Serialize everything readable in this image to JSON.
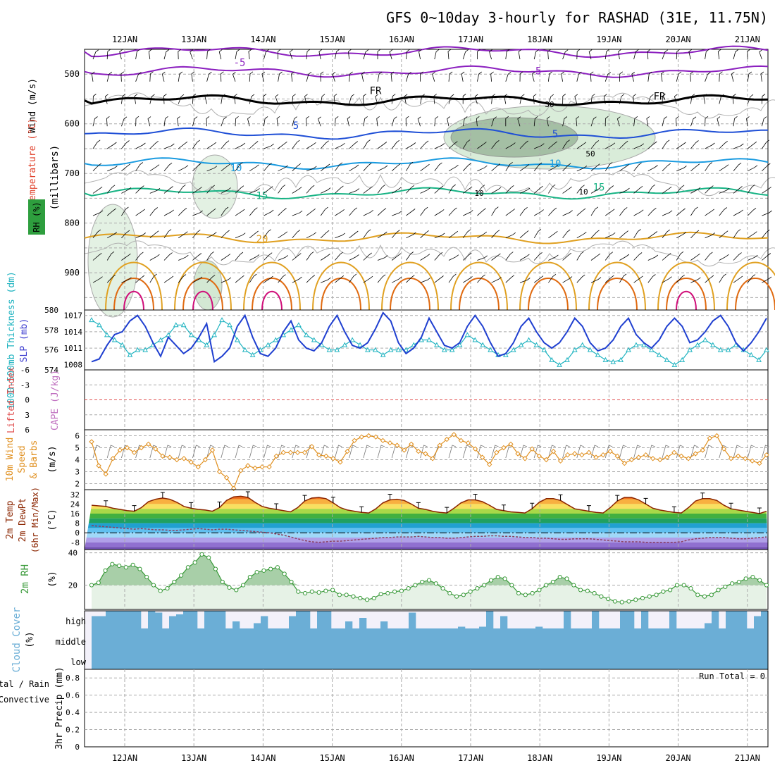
{
  "title": "GFS 0~10day 3-hourly for RASHAD (31E, 11.75N)",
  "dates": [
    "12JAN",
    "13JAN",
    "14JAN",
    "15JAN",
    "16JAN",
    "17JAN",
    "18JAN",
    "19JAN",
    "20JAN",
    "21JAN"
  ],
  "run_total": "Run Total = 0",
  "colors": {
    "rh_fill": "#2e9e3e",
    "cloud": "#6baed6",
    "cloud_bg": "#f3f1fa",
    "precip_total": "#2ca02c",
    "precip_conv": "#d62728"
  },
  "chart_data": [
    {
      "id": "upper-air",
      "type": "contour",
      "ylabel_parts": [
        "Wind (m/s)",
        "Temperature (°C)",
        "RH (%)"
      ],
      "ylabel_center": "(millibars)",
      "yticks": [
        "500",
        "600",
        "700",
        "800",
        "900"
      ],
      "ylim": [
        450,
        975
      ],
      "temp_contours": [
        {
          "label": "-5",
          "level_mb": 495,
          "color": "#8b1fbf"
        },
        {
          "label": "-5",
          "level_mb": 455,
          "color": "#8b1fbf"
        },
        {
          "label": "FR",
          "level_mb": 553,
          "color": "#000000"
        },
        {
          "label": "5",
          "level_mb": 620,
          "color": "#1f4fd6"
        },
        {
          "label": "10",
          "level_mb": 680,
          "color": "#1a9be0"
        },
        {
          "label": "15",
          "level_mb": 740,
          "color": "#17b384"
        },
        {
          "label": "20",
          "level_mb": 830,
          "color": "#e0a020"
        }
      ],
      "rh_labels": [
        "10",
        "30",
        "50"
      ]
    },
    {
      "id": "slp-thickness",
      "type": "line",
      "ylabel_left": "1000-500mb Thickness (dm)",
      "ylabel_right": "SLP (mb)",
      "thickness_ticks": [
        "580",
        "578",
        "576",
        "574"
      ],
      "slp_ticks": [
        "1017",
        "1014",
        "1011",
        "1008"
      ],
      "series": [
        {
          "name": "SLP",
          "color": "#1f3fd0",
          "values": [
            1008.5,
            1009,
            1011.5,
            1013.5,
            1014,
            1016,
            1017,
            1015,
            1012,
            1009.5,
            1013,
            1011.5,
            1010,
            1011,
            1013,
            1015.5,
            1008.5,
            1009.5,
            1011,
            1015,
            1017,
            1013,
            1010,
            1009.5,
            1011,
            1014,
            1016,
            1012.5,
            1011,
            1010.5,
            1012,
            1015,
            1017,
            1014,
            1011.5,
            1011,
            1012,
            1014.5,
            1017.5,
            1016,
            1012,
            1010,
            1011,
            1013,
            1016.5,
            1014,
            1011.5,
            1011,
            1012,
            1015,
            1017,
            1015,
            1012,
            1009.5,
            1010,
            1012,
            1015,
            1016.5,
            1014,
            1012,
            1011,
            1012,
            1014,
            1016.5,
            1015,
            1012,
            1010.5,
            1011,
            1012.5,
            1015,
            1016.5,
            1013.5,
            1012,
            1011,
            1012.5,
            1015,
            1016.5,
            1015,
            1012,
            1012.5,
            1014,
            1016,
            1017,
            1015,
            1012,
            1010.5,
            1012,
            1014,
            1016.5
          ]
        },
        {
          "name": "Thickness",
          "color": "#1fb3c0",
          "values": [
            579,
            578.5,
            577.5,
            577,
            576.5,
            575.5,
            576,
            576,
            576.5,
            577,
            577.5,
            578.5,
            578.5,
            577.5,
            577,
            576.5,
            577.5,
            579,
            578.5,
            577,
            576,
            575.5,
            576,
            576.5,
            577,
            577.5,
            578,
            578.5,
            577.5,
            577,
            576.5,
            576,
            576,
            576.5,
            577,
            576.5,
            576,
            576,
            575.5,
            576,
            576,
            576,
            576.5,
            577,
            577,
            576.5,
            576,
            576,
            576.5,
            577.5,
            577,
            576.5,
            576,
            575.5,
            575.5,
            576,
            576.5,
            577,
            576.5,
            576,
            575,
            574.5,
            575,
            576,
            576.5,
            576,
            575.5,
            575,
            574.8,
            575,
            576,
            576.5,
            576.5,
            576,
            575.5,
            575,
            574.5,
            575,
            576,
            576.5,
            577,
            576.5,
            576,
            576,
            576.5,
            576,
            575.5,
            575,
            576
          ]
        }
      ],
      "thickness_ylim": [
        574,
        580
      ],
      "slp_ylim": [
        1007,
        1018
      ]
    },
    {
      "id": "cape-li",
      "type": "line",
      "ylabel_left": "Lifted Index",
      "ylabel_right": "CAPE (J/kg)",
      "yticks": [
        "-6",
        "-3",
        "0",
        "3",
        "6"
      ],
      "ylim": [
        -6,
        6
      ],
      "series": []
    },
    {
      "id": "wind10m",
      "type": "line",
      "ylabel": "10m Wind Speed & Barbs (m/s)",
      "ylabel_lines": [
        "10m Wind",
        "Speed",
        "& Barbs"
      ],
      "yunit": "(m/s)",
      "yticks": [
        "2",
        "3",
        "4",
        "5",
        "6"
      ],
      "ylim": [
        1.5,
        6.5
      ],
      "series": [
        {
          "name": "Speed",
          "color": "#e09020",
          "values": [
            5.5,
            3.5,
            2.8,
            4.1,
            4.8,
            5,
            4.6,
            5,
            5.3,
            4.9,
            4.3,
            4.2,
            4,
            4.1,
            3.8,
            3.4,
            4,
            4.8,
            3,
            2.5,
            1.6,
            3.1,
            3.5,
            3.3,
            3.4,
            3.4,
            4.3,
            4.6,
            4.6,
            4.6,
            4.6,
            5.1,
            4.4,
            4.3,
            4.1,
            3.8,
            4.7,
            5.6,
            5.9,
            6,
            5.9,
            5.6,
            5.4,
            5.2,
            4.8,
            5.3,
            4.7,
            4.5,
            4.1,
            5.2,
            5.7,
            6.1,
            5.6,
            5.4,
            4.9,
            4.2,
            3.6,
            4.6,
            5,
            5.3,
            4.5,
            4.1,
            4.9,
            4.3,
            4,
            4.7,
            3.9,
            4.4,
            4.5,
            4.4,
            4.6,
            4.2,
            4.4,
            4.7,
            4.3,
            3.7,
            4,
            4.2,
            4.4,
            4.1,
            4,
            4.2,
            4.6,
            4.3,
            4.1,
            4.5,
            4.8,
            5.8,
            6,
            4.9,
            4.1,
            4.3,
            4.1,
            3.9,
            3.7,
            4.4
          ]
        }
      ]
    },
    {
      "id": "temp2m",
      "type": "area",
      "ylabel_lines": [
        "2m Temp",
        "2m DewPt",
        "(6hr Min/Max)"
      ],
      "yunit": "(°C)",
      "yticks": [
        "32",
        "24",
        "16",
        "8",
        "0",
        "-8"
      ],
      "ylim": [
        -14,
        36
      ],
      "series": [
        {
          "name": "2m Temp",
          "color": "#8b2500",
          "values": [
            23,
            22.5,
            22,
            20.5,
            19.5,
            18.5,
            18,
            21,
            26,
            28,
            29,
            28,
            25.5,
            22,
            20.5,
            19.5,
            19,
            18,
            21,
            27,
            30,
            30.5,
            29.5,
            25.5,
            22,
            20.5,
            19.5,
            18.5,
            17.5,
            21,
            26.5,
            29,
            29.5,
            28.5,
            25,
            21,
            19,
            18,
            17,
            16.5,
            20,
            25,
            27.5,
            28,
            27,
            24,
            20.5,
            19.5,
            18,
            17,
            16.5,
            20.5,
            25,
            27.5,
            27.5,
            26,
            23,
            19.5,
            18.5,
            17.5,
            17,
            16.5,
            20,
            25.5,
            28.5,
            28.5,
            27,
            23.5,
            20,
            19,
            18,
            17,
            16.5,
            21,
            26.5,
            29.5,
            29.5,
            27.5,
            24,
            20.5,
            19,
            18,
            17,
            16.5,
            21,
            26.5,
            28.5,
            28.5,
            27,
            23,
            20,
            19,
            18,
            17,
            16,
            18
          ]
        },
        {
          "name": "2m DewPt",
          "color": "#8b4060",
          "values": [
            6,
            5.5,
            5,
            4.5,
            4,
            3.5,
            3,
            3.5,
            3,
            2.5,
            2.5,
            2,
            2,
            2.5,
            3,
            3.5,
            3,
            2.5,
            3,
            3,
            2.5,
            2,
            1.5,
            1,
            0.5,
            0,
            -1,
            -2,
            -3.5,
            -5,
            -6.5,
            -7.5,
            -8,
            -7.5,
            -7,
            -7,
            -6.5,
            -6,
            -5.5,
            -5,
            -4.5,
            -4,
            -4,
            -3.5,
            -3.5,
            -3.5,
            -3,
            -3.5,
            -4,
            -4,
            -4.5,
            -4.5,
            -4,
            -3.5,
            -3,
            -3,
            -2.5,
            -2.5,
            -3,
            -3,
            -3.5,
            -4,
            -4,
            -4.5,
            -4.5,
            -5,
            -5.5,
            -5.5,
            -5,
            -5,
            -5,
            -5.5,
            -6,
            -6.5,
            -7,
            -7.5,
            -7.5,
            -7.5,
            -8,
            -8,
            -8,
            -8,
            -8,
            -7.5,
            -6,
            -5,
            -4.5,
            -4,
            -4,
            -4,
            -4.5,
            -5,
            -5,
            -4.5,
            -4,
            -3.5
          ]
        }
      ]
    },
    {
      "id": "rh2m",
      "type": "line",
      "ylabel": "2m RH",
      "yunit": "(%)",
      "yticks": [
        "20",
        "40"
      ],
      "ylim": [
        5,
        42
      ],
      "series": [
        {
          "name": "2m RH",
          "color": "#3a9a3a",
          "values": [
            20,
            21.5,
            29,
            33,
            32,
            31,
            32.5,
            30,
            25,
            20,
            16.5,
            18,
            22,
            26,
            31,
            34,
            39,
            37,
            30,
            22,
            18.5,
            17,
            20,
            25,
            28,
            29,
            30,
            31,
            27,
            22,
            16,
            15,
            16,
            15.5,
            16.5,
            17,
            14,
            14,
            13,
            12,
            11,
            12,
            14.5,
            15,
            16,
            16.5,
            18,
            20,
            22,
            23,
            21,
            18,
            15,
            13,
            14,
            16,
            18,
            20,
            23,
            25,
            24,
            20,
            15,
            14,
            15,
            17,
            20,
            22,
            25,
            24,
            20,
            17,
            16.5,
            15,
            13,
            11.5,
            10,
            9.5,
            10,
            11,
            12,
            13,
            14,
            16,
            17,
            20,
            20,
            18,
            14,
            13,
            14,
            17,
            19,
            21,
            22,
            24,
            25,
            23,
            20
          ]
        }
      ]
    },
    {
      "id": "cloud",
      "type": "bar",
      "ylabel": "Cloud Cover (%)",
      "ylabel_lines": [
        "Cloud Cover",
        "(%)"
      ],
      "levels": [
        "high",
        "middle",
        "low"
      ],
      "series": [
        {
          "name": "high",
          "color": "#6baed6",
          "values": [
            70,
            70,
            100,
            100,
            100,
            100,
            100,
            0,
            100,
            90,
            0,
            70,
            80,
            100,
            100,
            0,
            100,
            100,
            100,
            0,
            40,
            0,
            0,
            30,
            70,
            0,
            0,
            0,
            70,
            100,
            100,
            0,
            100,
            100,
            0,
            0,
            40,
            0,
            60,
            0,
            0,
            40,
            0,
            0,
            0,
            90,
            0,
            0,
            0,
            0,
            0,
            0,
            10,
            0,
            0,
            10,
            100,
            0,
            70,
            0,
            0,
            0,
            0,
            10,
            0,
            0,
            0,
            100,
            0,
            0,
            0,
            100,
            0,
            0,
            0,
            100,
            100,
            0,
            100,
            0,
            0,
            0,
            100,
            0,
            0,
            0,
            0,
            30,
            100,
            0,
            100,
            100,
            100,
            0,
            70,
            100
          ]
        },
        {
          "name": "middle",
          "color": "#6baed6",
          "values": [
            100
          ]
        },
        {
          "name": "low",
          "color": "#6baed6",
          "values": [
            100
          ]
        }
      ]
    },
    {
      "id": "precip",
      "type": "bar",
      "ylabel": "3hr Precip (mm)",
      "legend": [
        "Total / Rain",
        "Convective"
      ],
      "yticks": [
        "0",
        "0.2",
        "0.4",
        "0.6",
        "0.8"
      ],
      "ylim": [
        0,
        0.9
      ],
      "series": []
    }
  ]
}
